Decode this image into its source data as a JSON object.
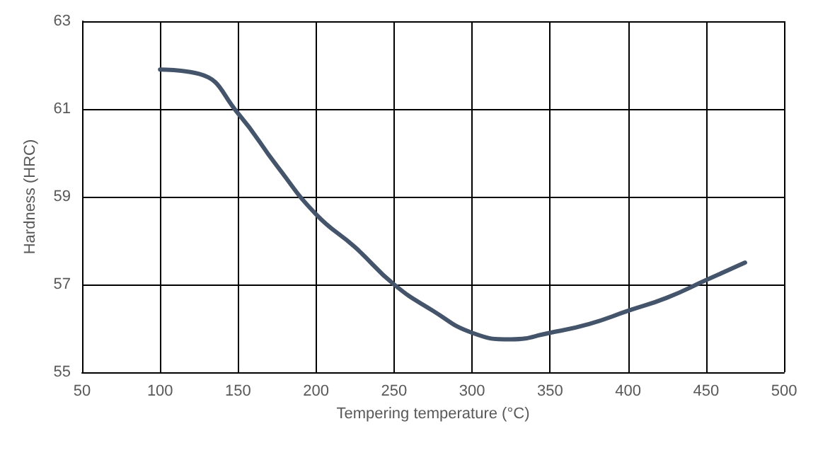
{
  "chart_data": {
    "type": "line",
    "xlabel": "Tempering temperature (°C)",
    "ylabel": "Hardness (HRC)",
    "x": [
      100,
      125,
      150,
      175,
      200,
      225,
      250,
      275,
      300,
      325,
      350,
      375,
      400,
      425,
      450,
      475
    ],
    "series": [
      {
        "color": "#44546a",
        "values": [
          61.9,
          61.8,
          60.9,
          59.7,
          58.6,
          57.85,
          57.0,
          56.4,
          55.9,
          55.75,
          55.9,
          56.1,
          56.4,
          56.7,
          57.1,
          57.5
        ]
      }
    ],
    "xlim": [
      50,
      500
    ],
    "xticks": [
      50,
      100,
      150,
      200,
      250,
      300,
      350,
      400,
      450,
      500
    ],
    "ylim": [
      55,
      63
    ],
    "yticks": [
      55,
      57,
      59,
      61,
      63
    ],
    "grid": true,
    "marker": "none",
    "line_style": "solid"
  }
}
